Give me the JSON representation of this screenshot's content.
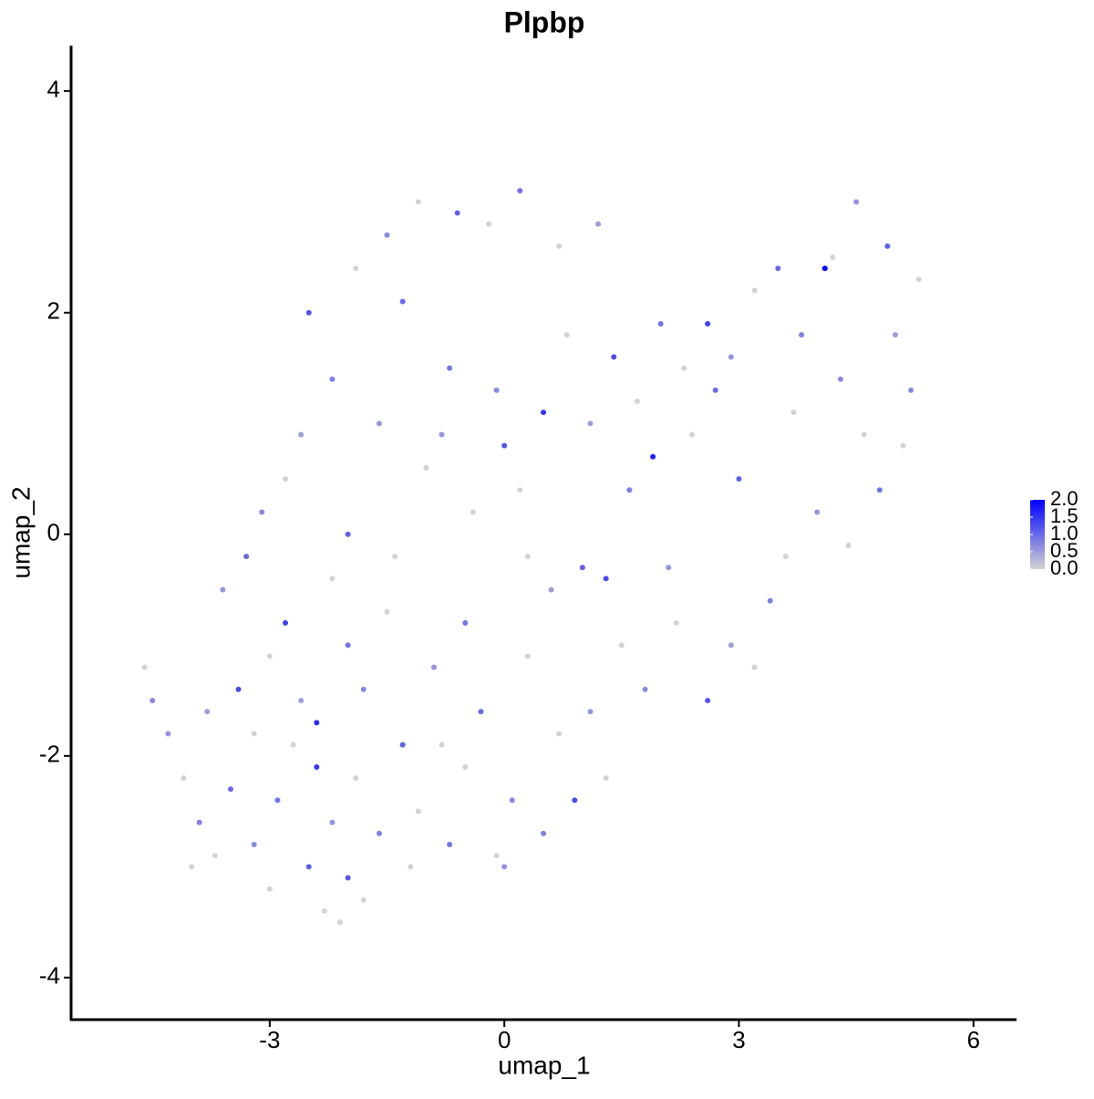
{
  "chart_data": {
    "type": "scatter",
    "title": "Plpbp",
    "xlabel": "umap_1",
    "ylabel": "umap_2",
    "x": [
      -4.6,
      -4.5,
      -4.3,
      -4.1,
      -3.9,
      -3.7,
      -3.5,
      -3.8,
      -3.4,
      -3.2,
      -3.0,
      -2.9,
      -2.7,
      -2.5,
      -2.3,
      -2.2,
      -2.0,
      -1.9,
      -1.8,
      -1.6,
      -3.6,
      -3.3,
      -3.0,
      -2.8,
      -2.6,
      -2.4,
      -2.2,
      -2.0,
      -1.8,
      -1.5,
      -1.3,
      -1.1,
      -0.9,
      -0.7,
      -0.5,
      -0.3,
      -0.1,
      0.1,
      0.3,
      0.5,
      0.7,
      0.9,
      1.1,
      1.3,
      0.6,
      1.0,
      1.5,
      1.8,
      2.2,
      2.6,
      2.9,
      3.2,
      3.4,
      3.6,
      4.0,
      4.4,
      4.8,
      5.1,
      5.2,
      5.0,
      5.3,
      4.9,
      4.5,
      4.2,
      4.1,
      3.8,
      3.5,
      3.2,
      2.9,
      2.6,
      2.3,
      2.0,
      1.7,
      1.4,
      1.1,
      0.8,
      0.5,
      0.2,
      -0.1,
      -0.4,
      -0.7,
      -1.0,
      -1.3,
      -1.6,
      -1.9,
      -2.2,
      -2.5,
      -2.8,
      -3.1,
      -2.6,
      -2.0,
      -1.4,
      -0.8,
      -0.2,
      0.2,
      -0.6,
      -1.1,
      -1.5,
      0.7,
      1.2,
      0.0,
      -0.5,
      0.3,
      1.6,
      2.4,
      3.0,
      3.7,
      4.3,
      4.6,
      2.1,
      1.3,
      -2.4,
      -3.2,
      -1.2,
      0.0,
      -4.0,
      -2.1,
      1.9,
      -0.8,
      2.7
    ],
    "y": [
      -1.2,
      -1.5,
      -1.8,
      -2.2,
      -2.6,
      -2.9,
      -2.3,
      -1.6,
      -1.4,
      -2.8,
      -3.2,
      -2.4,
      -1.9,
      -3.0,
      -3.4,
      -2.6,
      -3.1,
      -2.2,
      -3.3,
      -2.7,
      -0.5,
      -0.2,
      -1.1,
      -0.8,
      -1.5,
      -1.7,
      -0.4,
      -1.0,
      -1.4,
      -0.7,
      -1.9,
      -2.5,
      -1.2,
      -2.8,
      -2.1,
      -1.6,
      -2.9,
      -2.4,
      -1.1,
      -2.7,
      -1.8,
      -2.4,
      -1.6,
      -2.2,
      -0.5,
      -0.3,
      -1.0,
      -1.4,
      -0.8,
      -1.5,
      -1.0,
      -1.2,
      -0.6,
      -0.2,
      0.2,
      -0.1,
      0.4,
      0.8,
      1.3,
      1.8,
      2.3,
      2.6,
      3.0,
      2.5,
      2.4,
      1.8,
      2.4,
      2.2,
      1.6,
      1.9,
      1.5,
      1.9,
      1.2,
      1.6,
      1.0,
      1.8,
      1.1,
      0.4,
      1.3,
      0.2,
      1.5,
      0.6,
      2.1,
      1.0,
      2.4,
      1.4,
      2.0,
      0.5,
      0.2,
      0.9,
      0.0,
      -0.2,
      0.9,
      2.8,
      3.1,
      2.9,
      3.0,
      2.7,
      2.6,
      2.8,
      0.8,
      -0.8,
      -0.2,
      0.4,
      0.9,
      0.5,
      1.1,
      1.4,
      0.9,
      -0.3,
      -0.4,
      -2.1,
      -1.8,
      -3.0,
      -3.0,
      -3.0,
      -3.5,
      0.7,
      -1.9,
      1.3
    ],
    "values": [
      0,
      0.7,
      0.6,
      0,
      0.8,
      0,
      1.0,
      0.5,
      1.3,
      0.7,
      0,
      0.9,
      0,
      1.1,
      0,
      0.6,
      1.2,
      0,
      0,
      0.8,
      0.6,
      1.0,
      0,
      1.4,
      0.5,
      1.6,
      0,
      0.9,
      0.7,
      0,
      1.1,
      0,
      0.6,
      0.9,
      0,
      1.0,
      0,
      0.7,
      0,
      0.8,
      0,
      1.3,
      0.6,
      0,
      0.5,
      1.1,
      0,
      0.7,
      0,
      1.2,
      0.5,
      0,
      0.8,
      0,
      0.6,
      0,
      0.9,
      0,
      0.7,
      0.5,
      0,
      1.1,
      0.6,
      0,
      2.0,
      0.8,
      1.0,
      0,
      0.6,
      1.4,
      0,
      0.9,
      0,
      1.3,
      0.5,
      0,
      1.5,
      0,
      0.7,
      0,
      0.9,
      0,
      1.0,
      0.6,
      0,
      0.8,
      1.2,
      0,
      0.7,
      0.5,
      1.1,
      0,
      0.6,
      0,
      0.9,
      1.1,
      0,
      0.7,
      0,
      0.5,
      1.2,
      0.9,
      0,
      0.8,
      0,
      1.1,
      0,
      0.7,
      0,
      0.6,
      1.3,
      1.5,
      0,
      0,
      0.6,
      0,
      0,
      1.7,
      0,
      1.0
    ],
    "xlim": [
      -5.54,
      6.55
    ],
    "ylim": [
      -4.38,
      4.41
    ],
    "xticks": [
      -3,
      0,
      3,
      6
    ],
    "yticks": [
      -4,
      -2,
      0,
      2,
      4
    ],
    "color_low": "#d3d3d3",
    "color_high": "#0000ff",
    "color_lim": [
      0,
      2
    ],
    "color_ticks": [
      {
        "value": 0,
        "label": "0.0"
      },
      0.5,
      {
        "value": 1,
        "label": "1.0"
      },
      1.5,
      {
        "value": 2,
        "label": "2.0"
      }
    ]
  }
}
